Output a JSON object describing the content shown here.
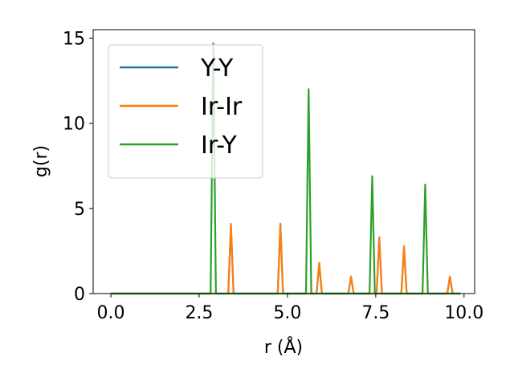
{
  "chart_data": {
    "type": "line",
    "xlabel": "r (Å)",
    "ylabel": "g(r)",
    "xlim": [
      -0.5,
      10.3
    ],
    "ylim": [
      0,
      15.5
    ],
    "xticks": [
      0.0,
      2.5,
      5.0,
      7.5,
      10.0
    ],
    "xtick_labels": [
      "0.0",
      "2.5",
      "5.0",
      "7.5",
      "10.0"
    ],
    "yticks": [
      0,
      5,
      10,
      15
    ],
    "ytick_labels": [
      "0",
      "5",
      "10",
      "15"
    ],
    "grid": false,
    "legend_position": "top-left",
    "x_start": 0.0,
    "x_end": 9.9,
    "series": [
      {
        "name": "Y-Y",
        "color": "#1f77b4",
        "peaks": [
          {
            "r": 3.4,
            "g": 4.0
          },
          {
            "r": 4.8,
            "g": 4.1
          },
          {
            "r": 5.9,
            "g": 1.8
          },
          {
            "r": 6.8,
            "g": 1.0
          },
          {
            "r": 7.6,
            "g": 3.3
          },
          {
            "r": 8.3,
            "g": 2.7
          },
          {
            "r": 9.6,
            "g": 1.0
          }
        ]
      },
      {
        "name": "Ir-Ir",
        "color": "#ff7f0e",
        "peaks": [
          {
            "r": 3.4,
            "g": 4.1
          },
          {
            "r": 4.8,
            "g": 4.1
          },
          {
            "r": 5.9,
            "g": 1.8
          },
          {
            "r": 6.8,
            "g": 1.0
          },
          {
            "r": 7.6,
            "g": 3.3
          },
          {
            "r": 8.3,
            "g": 2.8
          },
          {
            "r": 9.6,
            "g": 1.0
          }
        ]
      },
      {
        "name": "Ir-Y",
        "color": "#2ca02c",
        "peaks": [
          {
            "r": 2.9,
            "g": 14.7
          },
          {
            "r": 5.6,
            "g": 12.0
          },
          {
            "r": 7.4,
            "g": 6.9
          },
          {
            "r": 8.9,
            "g": 6.4
          }
        ]
      }
    ]
  }
}
